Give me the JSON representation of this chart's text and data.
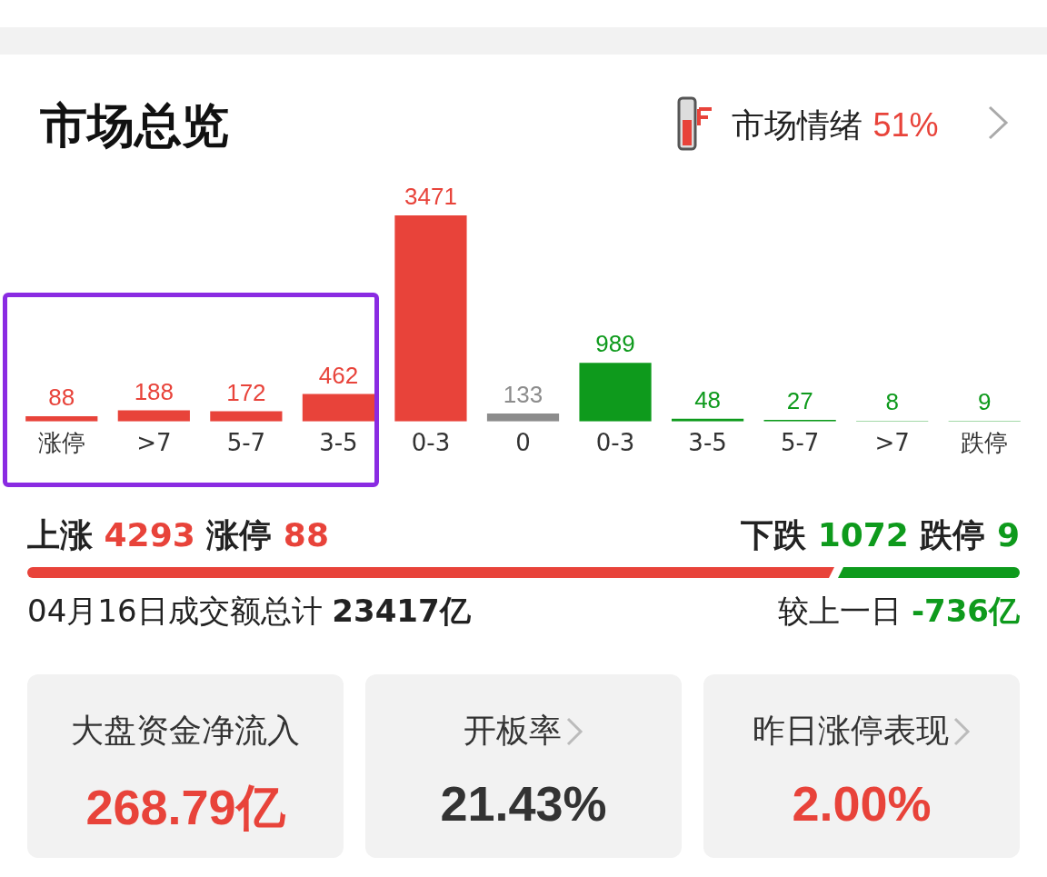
{
  "chart_data": {
    "type": "bar",
    "title": "市场总览",
    "categories": [
      "涨停",
      ">7",
      "5-7",
      "3-5",
      "0-3",
      "0",
      "0-3",
      "3-5",
      "5-7",
      ">7",
      "跌停"
    ],
    "values": [
      88,
      188,
      172,
      462,
      3471,
      133,
      989,
      48,
      27,
      8,
      9
    ],
    "colors": [
      "#e8433a",
      "#e8433a",
      "#e8433a",
      "#e8433a",
      "#e8433a",
      "#8c8c8c",
      "#0e9a1c",
      "#0e9a1c",
      "#0e9a1c",
      "#0e9a1c",
      "#0e9a1c"
    ],
    "data_labels": true,
    "tick_labels": "x",
    "annotations": [
      "市场情绪",
      "51%",
      "上涨",
      "4293",
      "涨停",
      "88",
      "下跌",
      "1072",
      "跌停",
      "9",
      "04月16日成交额总计",
      "23417亿",
      "较上一日",
      "-736亿",
      "大盘资金净流入",
      "268.79亿",
      "开板率",
      "21.43%",
      "昨日涨停表现",
      "2.00%"
    ]
  }
}
